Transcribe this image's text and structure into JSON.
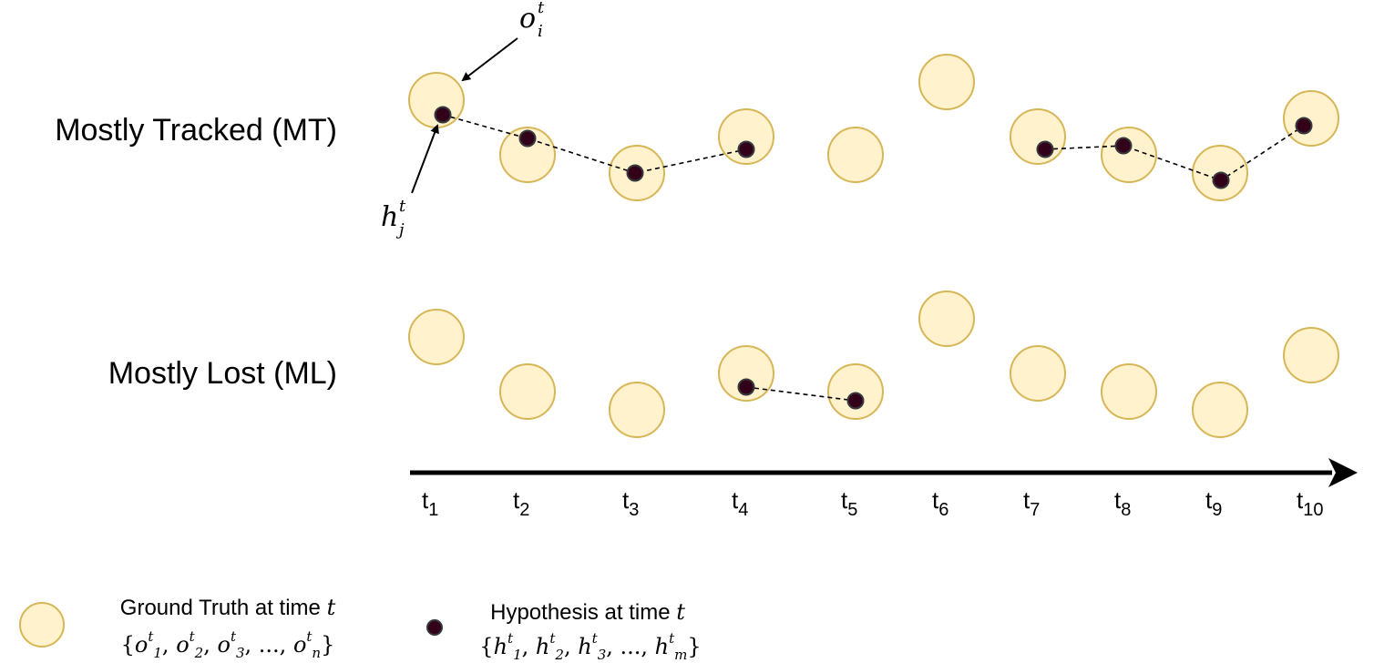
{
  "rows": [
    {
      "label": "Mostly Tracked (MT)",
      "ground_truth": [
        1,
        2,
        3,
        4,
        5,
        6,
        7,
        8,
        9,
        10
      ],
      "hypotheses": [
        1,
        2,
        3,
        4,
        7,
        8,
        9,
        10
      ],
      "tracks": [
        [
          1,
          2,
          3,
          4
        ],
        [
          7,
          8,
          9,
          10
        ]
      ]
    },
    {
      "label": "Mostly Lost (ML)",
      "ground_truth": [
        1,
        2,
        3,
        4,
        5,
        6,
        7,
        8,
        9,
        10
      ],
      "hypotheses": [
        4,
        5
      ],
      "tracks": [
        [
          4,
          5
        ]
      ]
    }
  ],
  "timeline": {
    "base": "t",
    "ticks": [
      "1",
      "2",
      "3",
      "4",
      "5",
      "6",
      "7",
      "8",
      "9",
      "10"
    ]
  },
  "annotations": {
    "object": {
      "base": "o",
      "sub": "i",
      "sup": "t"
    },
    "hypothesis": {
      "base": "h",
      "sub": "j",
      "sup": "t"
    }
  },
  "legend": {
    "ground_truth": {
      "label": "Ground Truth at time ",
      "time_var": "t",
      "set_symbol": "o",
      "set_indices": [
        "1",
        "2",
        "3",
        "...",
        "n"
      ]
    },
    "hypothesis": {
      "label": "Hypothesis at time ",
      "time_var": "t",
      "set_symbol": "h",
      "set_indices": [
        "1",
        "2",
        "3",
        "...",
        "m"
      ]
    }
  },
  "colors": {
    "ground_truth_fill": "#fff2cc",
    "ground_truth_stroke": "#d6b656",
    "hypothesis_fill": "#33001a",
    "hypothesis_stroke": "#36393d",
    "axis": "#000000"
  }
}
